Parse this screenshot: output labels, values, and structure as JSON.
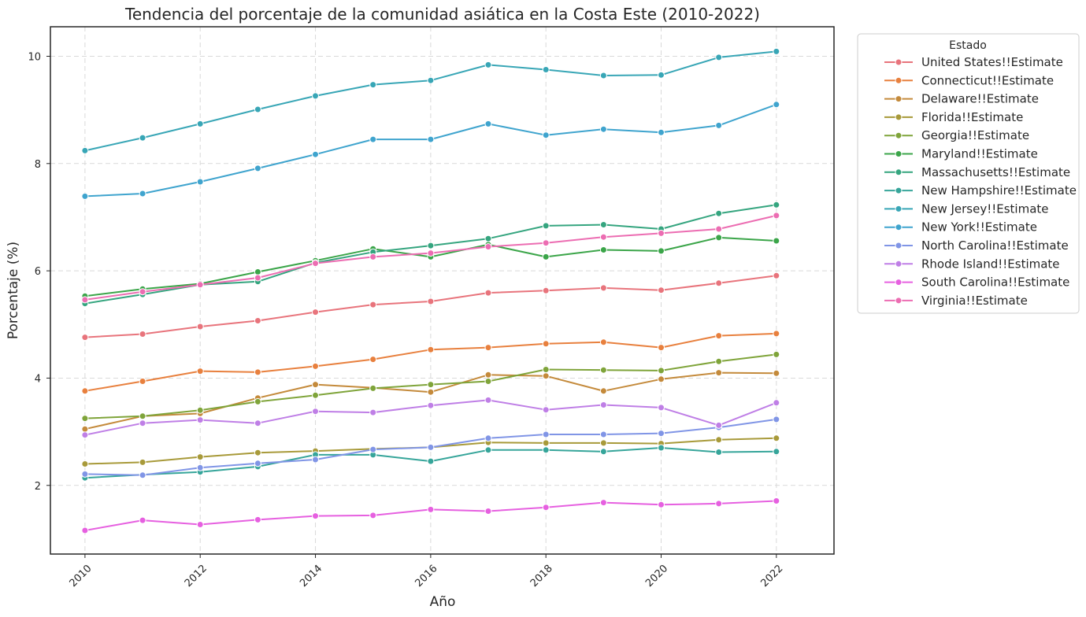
{
  "chart_data": {
    "type": "line",
    "title": "Tendencia del porcentaje de la comunidad asiática en la Costa Este (2010-2022)",
    "xlabel": "Año",
    "ylabel": "Porcentaje (%)",
    "xlim": [
      2009.4,
      2023.0
    ],
    "ylim": [
      0.72,
      10.55
    ],
    "xticks": [
      2010,
      2012,
      2014,
      2016,
      2018,
      2020,
      2022
    ],
    "yticks": [
      2,
      4,
      6,
      8,
      10
    ],
    "grid": true,
    "legend_title": "Estado",
    "legend_position": "outside-right",
    "x": [
      2010,
      2011,
      2012,
      2013,
      2014,
      2015,
      2016,
      2017,
      2018,
      2019,
      2020,
      2021,
      2022
    ],
    "series": [
      {
        "name": "United States!!Estimate",
        "color": "#e8747c",
        "values": [
          4.76,
          4.82,
          4.96,
          5.07,
          5.23,
          5.37,
          5.43,
          5.59,
          5.63,
          5.68,
          5.64,
          5.77,
          5.91
        ]
      },
      {
        "name": "Connecticut!!Estimate",
        "color": "#e8803e",
        "values": [
          3.76,
          3.94,
          4.13,
          4.11,
          4.22,
          4.35,
          4.53,
          4.57,
          4.64,
          4.67,
          4.57,
          4.79,
          4.83
        ]
      },
      {
        "name": "Delaware!!Estimate",
        "color": "#c48a3b",
        "values": [
          3.05,
          3.29,
          3.34,
          3.63,
          3.88,
          3.82,
          3.74,
          4.06,
          4.04,
          3.76,
          3.98,
          4.1,
          4.09
        ]
      },
      {
        "name": "Florida!!Estimate",
        "color": "#a89a3a",
        "values": [
          2.4,
          2.43,
          2.53,
          2.61,
          2.64,
          2.68,
          2.71,
          2.8,
          2.79,
          2.79,
          2.78,
          2.85,
          2.88
        ]
      },
      {
        "name": "Georgia!!Estimate",
        "color": "#7fa43a",
        "values": [
          3.25,
          3.29,
          3.4,
          3.56,
          3.68,
          3.81,
          3.88,
          3.94,
          4.16,
          4.15,
          4.14,
          4.31,
          4.44
        ]
      },
      {
        "name": "Maryland!!Estimate",
        "color": "#3ba549",
        "values": [
          5.53,
          5.66,
          5.76,
          5.98,
          6.19,
          6.41,
          6.26,
          6.49,
          6.26,
          6.39,
          6.37,
          6.62,
          6.56
        ]
      },
      {
        "name": "Massachusetts!!Estimate",
        "color": "#35a57f",
        "values": [
          5.39,
          5.56,
          5.74,
          5.8,
          6.15,
          6.35,
          6.47,
          6.6,
          6.84,
          6.86,
          6.78,
          7.07,
          7.23
        ]
      },
      {
        "name": "New Hampshire!!Estimate",
        "color": "#36a59a",
        "values": [
          2.14,
          2.2,
          2.25,
          2.35,
          2.57,
          2.57,
          2.45,
          2.66,
          2.66,
          2.63,
          2.7,
          2.62,
          2.63
        ]
      },
      {
        "name": "New Jersey!!Estimate",
        "color": "#38a6b6",
        "values": [
          8.24,
          8.48,
          8.74,
          9.01,
          9.26,
          9.47,
          9.55,
          9.84,
          9.75,
          9.64,
          9.65,
          9.98,
          10.09
        ]
      },
      {
        "name": "New York!!Estimate",
        "color": "#3fa4ce",
        "values": [
          7.39,
          7.44,
          7.66,
          7.91,
          8.17,
          8.45,
          8.45,
          8.74,
          8.53,
          8.64,
          8.58,
          8.71,
          9.1
        ]
      },
      {
        "name": "North Carolina!!Estimate",
        "color": "#8095e6",
        "values": [
          2.21,
          2.19,
          2.33,
          2.41,
          2.48,
          2.67,
          2.71,
          2.88,
          2.95,
          2.95,
          2.97,
          3.08,
          3.23
        ]
      },
      {
        "name": "Rhode Island!!Estimate",
        "color": "#bf7fe6",
        "values": [
          2.94,
          3.16,
          3.22,
          3.16,
          3.38,
          3.36,
          3.49,
          3.59,
          3.41,
          3.5,
          3.45,
          3.12,
          3.54
        ]
      },
      {
        "name": "South Carolina!!Estimate",
        "color": "#e660e0",
        "values": [
          1.16,
          1.35,
          1.27,
          1.36,
          1.43,
          1.44,
          1.55,
          1.52,
          1.59,
          1.68,
          1.64,
          1.66,
          1.71
        ]
      },
      {
        "name": "Virginia!!Estimate",
        "color": "#ec6db2",
        "values": [
          5.46,
          5.61,
          5.74,
          5.87,
          6.14,
          6.26,
          6.33,
          6.45,
          6.52,
          6.63,
          6.7,
          6.78,
          7.03
        ]
      }
    ]
  }
}
